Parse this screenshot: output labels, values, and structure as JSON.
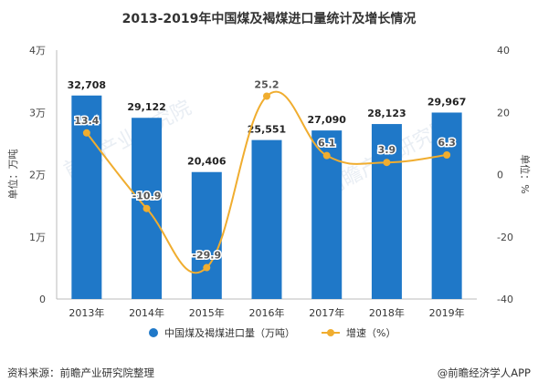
{
  "chart_data": {
    "type": "bar",
    "title": "2013-2019年中国煤及褐煤进口量统计及增长情况",
    "categories": [
      "2013年",
      "2014年",
      "2015年",
      "2016年",
      "2017年",
      "2018年",
      "2019年"
    ],
    "series": [
      {
        "name": "中国煤及褐煤进口量（万吨）",
        "type": "bar",
        "axis": "left",
        "values": [
          32708,
          29122,
          20406,
          25551,
          27090,
          28123,
          29967
        ],
        "labels": [
          "32,708",
          "29,122",
          "20,406",
          "25,551",
          "27,090",
          "28,123",
          "29,967"
        ],
        "color": "#1f78c8"
      },
      {
        "name": "增速（%）",
        "type": "line",
        "axis": "right",
        "values": [
          13.4,
          -10.9,
          -29.9,
          25.2,
          6.1,
          3.9,
          6.3
        ],
        "labels": [
          "13.4",
          "-10.9",
          "-29.9",
          "25.2",
          "6.1",
          "3.9",
          "6.3"
        ],
        "color": "#f0ad2f"
      }
    ],
    "left_axis": {
      "label": "单位：万吨",
      "min": 0,
      "max": 40000,
      "ticks": [
        0,
        10000,
        20000,
        30000,
        40000
      ],
      "tick_labels": [
        "0",
        "1万",
        "2万",
        "3万",
        "4万"
      ]
    },
    "right_axis": {
      "label": "单位：%",
      "min": -40,
      "max": 40,
      "ticks": [
        -40,
        -20,
        0,
        20,
        40
      ],
      "tick_labels": [
        "-40",
        "-20",
        "0",
        "20",
        "40"
      ]
    },
    "grid": false,
    "legend_position": "bottom",
    "watermark": "前瞻产业研究院"
  },
  "footer": {
    "source": "资料来源：前瞻产业研究院整理",
    "brand": "@前瞻经济学人APP"
  }
}
